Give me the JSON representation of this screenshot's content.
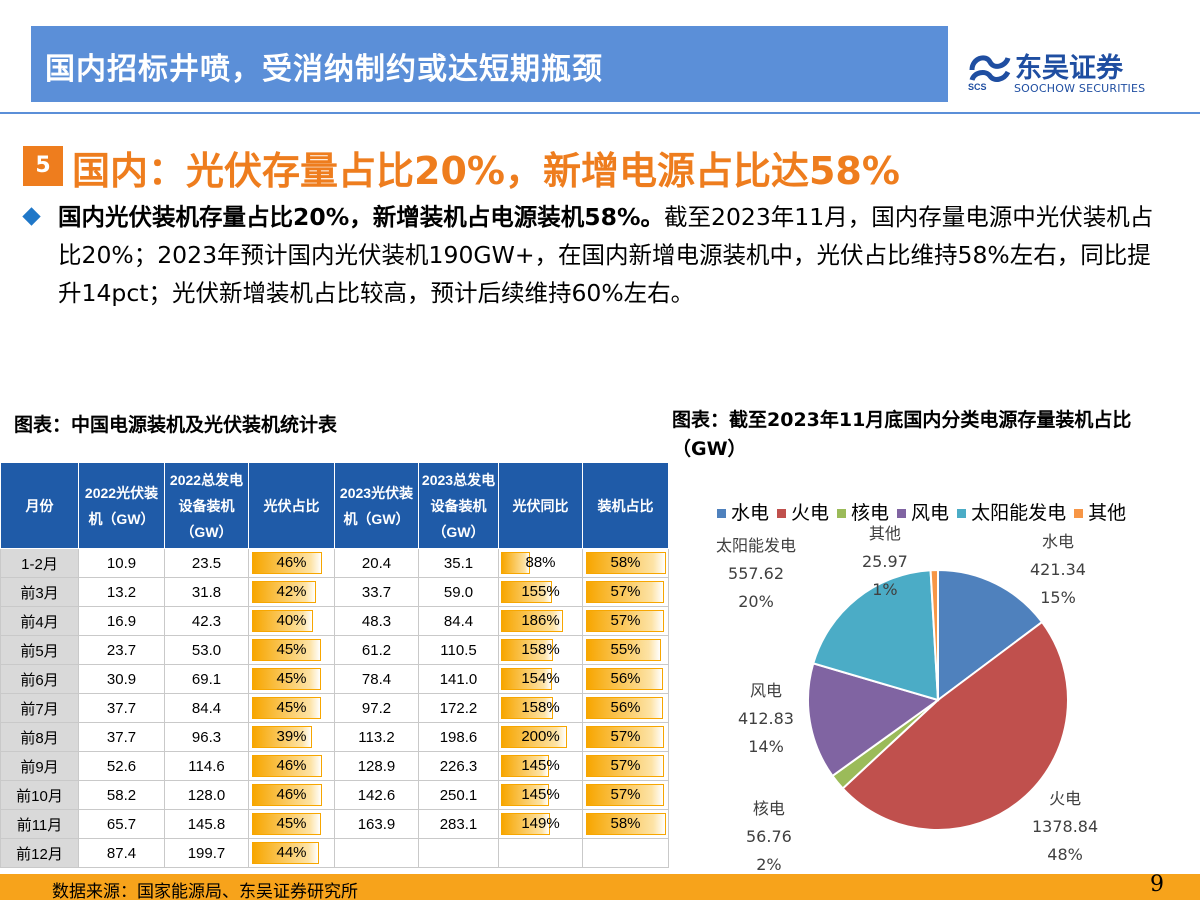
{
  "header": {
    "title": "国内招标井喷，受消纳制约或达短期瓶颈"
  },
  "logo": {
    "cn": "东吴证券",
    "en": "SOOCHOW SECURITIES",
    "mark": "SCS"
  },
  "section": {
    "number": "5",
    "title": "国内：光伏存量占比20%，新增电源占比达58%"
  },
  "bullet": {
    "bold": "国内光伏装机存量占比20%，新增装机占电源装机58%。",
    "text": "截至2023年11月，国内存量电源中光伏装机占比20%；2023年预计国内光伏装机190GW+，在国内新增电源装机中，光伏占比维持58%左右，同比提升14pct；光伏新增装机占比较高，预计后续维持60%左右。"
  },
  "table": {
    "caption": "图表：中国电源装机及光伏装机统计表",
    "headers": [
      "月份",
      "2022光伏装机（GW）",
      "2022总发电设备装机（GW）",
      "光伏占比",
      "2023光伏装机（GW）",
      "2023总发电设备装机（GW）",
      "光伏同比",
      "装机占比"
    ],
    "rows": [
      {
        "month": "1-2月",
        "pv22": "10.9",
        "tot22": "23.5",
        "share22": "46%",
        "pv23": "20.4",
        "tot23": "35.1",
        "yoy": "88%",
        "share23": "58%"
      },
      {
        "month": "前3月",
        "pv22": "13.2",
        "tot22": "31.8",
        "share22": "42%",
        "pv23": "33.7",
        "tot23": "59.0",
        "yoy": "155%",
        "share23": "57%"
      },
      {
        "month": "前4月",
        "pv22": "16.9",
        "tot22": "42.3",
        "share22": "40%",
        "pv23": "48.3",
        "tot23": "84.4",
        "yoy": "186%",
        "share23": "57%"
      },
      {
        "month": "前5月",
        "pv22": "23.7",
        "tot22": "53.0",
        "share22": "45%",
        "pv23": "61.2",
        "tot23": "110.5",
        "yoy": "158%",
        "share23": "55%"
      },
      {
        "month": "前6月",
        "pv22": "30.9",
        "tot22": "69.1",
        "share22": "45%",
        "pv23": "78.4",
        "tot23": "141.0",
        "yoy": "154%",
        "share23": "56%"
      },
      {
        "month": "前7月",
        "pv22": "37.7",
        "tot22": "84.4",
        "share22": "45%",
        "pv23": "97.2",
        "tot23": "172.2",
        "yoy": "158%",
        "share23": "56%"
      },
      {
        "month": "前8月",
        "pv22": "37.7",
        "tot22": "96.3",
        "share22": "39%",
        "pv23": "113.2",
        "tot23": "198.6",
        "yoy": "200%",
        "share23": "57%"
      },
      {
        "month": "前9月",
        "pv22": "52.6",
        "tot22": "114.6",
        "share22": "46%",
        "pv23": "128.9",
        "tot23": "226.3",
        "yoy": "145%",
        "share23": "57%"
      },
      {
        "month": "前10月",
        "pv22": "58.2",
        "tot22": "128.0",
        "share22": "46%",
        "pv23": "142.6",
        "tot23": "250.1",
        "yoy": "145%",
        "share23": "57%"
      },
      {
        "month": "前11月",
        "pv22": "65.7",
        "tot22": "145.8",
        "share22": "45%",
        "pv23": "163.9",
        "tot23": "283.1",
        "yoy": "149%",
        "share23": "58%"
      },
      {
        "month": "前12月",
        "pv22": "87.4",
        "tot22": "199.7",
        "share22": "44%",
        "pv23": "",
        "tot23": "",
        "yoy": "",
        "share23": ""
      }
    ]
  },
  "chart_data": {
    "type": "pie",
    "title": "图表：截至2023年11月底国内分类电源存量装机占比（GW）",
    "legend_placement": "top",
    "slices": [
      {
        "name": "水电",
        "value": 421.34,
        "pct": "15%",
        "color": "#4f81bd"
      },
      {
        "name": "火电",
        "value": 1378.84,
        "pct": "48%",
        "color": "#c0504d"
      },
      {
        "name": "核电",
        "value": 56.76,
        "pct": "2%",
        "color": "#9bbb59"
      },
      {
        "name": "风电",
        "value": 412.83,
        "pct": "14%",
        "color": "#8064a2"
      },
      {
        "name": "太阳能发电",
        "value": 557.62,
        "pct": "20%",
        "color": "#4bacc6"
      },
      {
        "name": "其他",
        "value": 25.97,
        "pct": "1%",
        "color": "#f79646"
      }
    ]
  },
  "footer": {
    "source": "数据来源：国家能源局、东吴证券研究所",
    "page": "9"
  }
}
